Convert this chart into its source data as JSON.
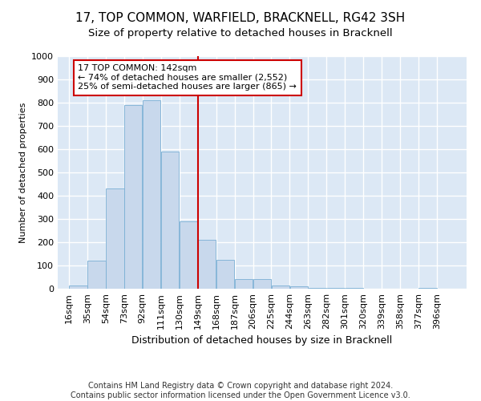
{
  "title": "17, TOP COMMON, WARFIELD, BRACKNELL, RG42 3SH",
  "subtitle": "Size of property relative to detached houses in Bracknell",
  "xlabel": "Distribution of detached houses by size in Bracknell",
  "ylabel": "Number of detached properties",
  "footer1": "Contains HM Land Registry data © Crown copyright and database right 2024.",
  "footer2": "Contains public sector information licensed under the Open Government Licence v3.0.",
  "annotation_line1": "17 TOP COMMON: 142sqm",
  "annotation_line2": "← 74% of detached houses are smaller (2,552)",
  "annotation_line3": "25% of semi-detached houses are larger (865) →",
  "bin_starts": [
    16,
    35,
    54,
    73,
    92,
    111,
    130,
    149,
    168,
    187,
    206,
    225,
    244,
    263,
    282,
    301,
    320,
    339,
    358,
    377,
    396
  ],
  "bin_labels": [
    "16sqm",
    "35sqm",
    "54sqm",
    "73sqm",
    "92sqm",
    "111sqm",
    "130sqm",
    "149sqm",
    "168sqm",
    "187sqm",
    "206sqm",
    "225sqm",
    "244sqm",
    "263sqm",
    "282sqm",
    "301sqm",
    "320sqm",
    "339sqm",
    "358sqm",
    "377sqm",
    "396sqm"
  ],
  "bar_values": [
    15,
    120,
    430,
    790,
    810,
    590,
    290,
    210,
    125,
    40,
    40,
    13,
    10,
    5,
    5,
    5,
    0,
    0,
    0,
    5
  ],
  "bar_color": "#c8d8ec",
  "bar_edge_color": "#7aafd4",
  "plot_bg_color": "#dce8f5",
  "fig_bg_color": "#ffffff",
  "grid_color": "#ffffff",
  "annotation_box_color": "#ffffff",
  "annotation_box_edge": "#cc0000",
  "vline_color": "#cc0000",
  "vline_x": 142,
  "ylim": [
    0,
    1000
  ],
  "yticks": [
    0,
    100,
    200,
    300,
    400,
    500,
    600,
    700,
    800,
    900,
    1000
  ],
  "title_fontsize": 11,
  "subtitle_fontsize": 9.5,
  "xlabel_fontsize": 9,
  "ylabel_fontsize": 8,
  "tick_fontsize": 8,
  "annotation_fontsize": 8,
  "footer_fontsize": 7
}
